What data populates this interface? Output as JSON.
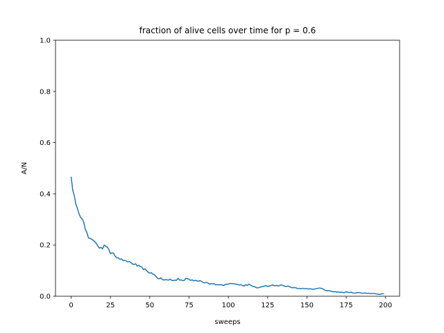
{
  "chart_data": {
    "type": "line",
    "title": "fraction of alive cells over time for p = 0.6",
    "xlabel": "sweeps",
    "ylabel": "A/N",
    "xlim": [
      -9.95,
      208.95
    ],
    "ylim": [
      0.0,
      1.0
    ],
    "grid": false,
    "xticks": [
      0,
      25,
      50,
      75,
      100,
      125,
      150,
      175,
      200
    ],
    "xtick_labels": [
      "0",
      "25",
      "50",
      "75",
      "100",
      "125",
      "150",
      "175",
      "200"
    ],
    "yticks": [
      0.0,
      0.2,
      0.4,
      0.6,
      0.8,
      1.0
    ],
    "ytick_labels": [
      "0.0",
      "0.2",
      "0.4",
      "0.6",
      "0.8",
      "1.0"
    ],
    "series": [
      {
        "color": "#1f77b4",
        "x": [
          0,
          1,
          2,
          3,
          4,
          5,
          6,
          7,
          8,
          9,
          10,
          11,
          12,
          13,
          14,
          15,
          16,
          17,
          18,
          19,
          20,
          21,
          22,
          23,
          24,
          25,
          26,
          27,
          28,
          29,
          30,
          31,
          32,
          33,
          34,
          35,
          36,
          37,
          38,
          39,
          40,
          41,
          42,
          43,
          44,
          45,
          46,
          47,
          48,
          49,
          50,
          51,
          52,
          53,
          54,
          55,
          56,
          57,
          58,
          59,
          60,
          61,
          62,
          63,
          64,
          65,
          66,
          67,
          68,
          69,
          70,
          71,
          72,
          73,
          74,
          75,
          76,
          77,
          78,
          79,
          80,
          81,
          82,
          83,
          84,
          85,
          86,
          87,
          88,
          89,
          90,
          91,
          92,
          93,
          94,
          95,
          96,
          97,
          98,
          99,
          100,
          101,
          102,
          103,
          104,
          105,
          106,
          107,
          108,
          109,
          110,
          111,
          112,
          113,
          114,
          115,
          116,
          117,
          118,
          119,
          120,
          121,
          122,
          123,
          124,
          125,
          126,
          127,
          128,
          129,
          130,
          131,
          132,
          133,
          134,
          135,
          136,
          137,
          138,
          139,
          140,
          141,
          142,
          143,
          144,
          145,
          146,
          147,
          148,
          149,
          150,
          151,
          152,
          153,
          154,
          155,
          156,
          157,
          158,
          159,
          160,
          161,
          162,
          163,
          164,
          165,
          166,
          167,
          168,
          169,
          170,
          171,
          172,
          173,
          174,
          175,
          176,
          177,
          178,
          179,
          180,
          181,
          182,
          183,
          184,
          185,
          186,
          187,
          188,
          189,
          190,
          191,
          192,
          193,
          194,
          195,
          196,
          197,
          198,
          199
        ],
        "y": [
          0.467,
          0.415,
          0.393,
          0.36,
          0.343,
          0.322,
          0.308,
          0.302,
          0.29,
          0.262,
          0.249,
          0.228,
          0.226,
          0.223,
          0.219,
          0.214,
          0.206,
          0.196,
          0.188,
          0.191,
          0.185,
          0.2,
          0.195,
          0.192,
          0.183,
          0.166,
          0.17,
          0.168,
          0.156,
          0.15,
          0.15,
          0.144,
          0.146,
          0.14,
          0.14,
          0.138,
          0.134,
          0.136,
          0.131,
          0.126,
          0.124,
          0.127,
          0.118,
          0.121,
          0.116,
          0.114,
          0.104,
          0.107,
          0.1,
          0.094,
          0.09,
          0.092,
          0.086,
          0.084,
          0.077,
          0.07,
          0.068,
          0.072,
          0.066,
          0.063,
          0.065,
          0.064,
          0.063,
          0.067,
          0.062,
          0.061,
          0.063,
          0.062,
          0.07,
          0.063,
          0.064,
          0.061,
          0.062,
          0.07,
          0.069,
          0.066,
          0.062,
          0.064,
          0.06,
          0.062,
          0.06,
          0.059,
          0.061,
          0.058,
          0.054,
          0.052,
          0.054,
          0.052,
          0.047,
          0.05,
          0.048,
          0.049,
          0.044,
          0.046,
          0.044,
          0.045,
          0.044,
          0.042,
          0.046,
          0.047,
          0.047,
          0.05,
          0.049,
          0.049,
          0.048,
          0.047,
          0.046,
          0.044,
          0.045,
          0.042,
          0.04,
          0.045,
          0.042,
          0.047,
          0.044,
          0.04,
          0.038,
          0.036,
          0.033,
          0.033,
          0.035,
          0.037,
          0.038,
          0.04,
          0.041,
          0.038,
          0.04,
          0.041,
          0.044,
          0.042,
          0.041,
          0.042,
          0.04,
          0.043,
          0.044,
          0.041,
          0.039,
          0.038,
          0.04,
          0.037,
          0.034,
          0.033,
          0.034,
          0.033,
          0.03,
          0.031,
          0.029,
          0.031,
          0.03,
          0.029,
          0.03,
          0.028,
          0.029,
          0.028,
          0.027,
          0.028,
          0.03,
          0.031,
          0.032,
          0.031,
          0.03,
          0.025,
          0.022,
          0.021,
          0.022,
          0.02,
          0.019,
          0.017,
          0.018,
          0.016,
          0.017,
          0.015,
          0.016,
          0.014,
          0.015,
          0.017,
          0.016,
          0.014,
          0.016,
          0.013,
          0.012,
          0.013,
          0.014,
          0.015,
          0.013,
          0.012,
          0.012,
          0.013,
          0.011,
          0.012,
          0.01,
          0.011,
          0.01,
          0.011,
          0.009,
          0.008,
          0.007,
          0.008,
          0.01,
          0.009
        ]
      }
    ]
  }
}
